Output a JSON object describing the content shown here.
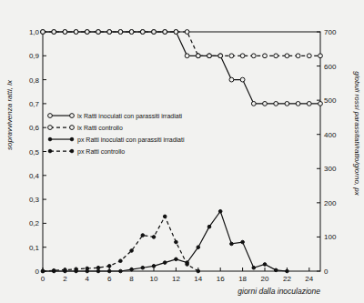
{
  "chart_data": {
    "type": "line",
    "x_label": "giorni dalla inoculazione",
    "y_label": "sopravvivenza ratti, lx",
    "y2_label": "globuli rossi parassitati/ratto/giorno, px",
    "x": [
      0,
      1,
      2,
      3,
      4,
      5,
      6,
      7,
      8,
      9,
      10,
      11,
      12,
      13,
      14,
      15,
      16,
      17,
      18,
      19,
      20,
      21,
      22,
      23,
      24,
      25
    ],
    "xlim": [
      0,
      25
    ],
    "xticks": [
      0,
      2,
      4,
      6,
      8,
      10,
      12,
      14,
      16,
      18,
      20,
      22,
      24
    ],
    "ylim": [
      0,
      1.0
    ],
    "yticks": [
      0,
      {
        "value": 0.1,
        "label": "0,1"
      },
      {
        "value": 0.2,
        "label": "0,2"
      },
      {
        "value": 0.3,
        "label": "0,3"
      },
      {
        "value": 0.4,
        "label": "0,4"
      },
      {
        "value": 0.5,
        "label": "0,5"
      },
      {
        "value": 0.6,
        "label": "0,6"
      },
      {
        "value": 0.7,
        "label": "0,7"
      },
      {
        "value": 0.8,
        "label": "0,8"
      },
      {
        "value": 0.9,
        "label": "0,9"
      },
      {
        "value": 1.0,
        "label": "1,0"
      }
    ],
    "y2lim": [
      0,
      700
    ],
    "y2ticks": [
      0,
      100,
      200,
      300,
      400,
      500,
      600,
      700
    ],
    "legend": "center-left",
    "grid": false,
    "series": [
      {
        "name": "lx Ratti inoculati con parassiti irradiati",
        "color": "#111111",
        "marker": "open-circle",
        "line_style": "solid",
        "values": [
          1.0,
          1.0,
          1.0,
          1.0,
          1.0,
          1.0,
          1.0,
          1.0,
          1.0,
          1.0,
          1.0,
          1.0,
          1.0,
          0.9,
          0.9,
          0.9,
          0.9,
          0.8,
          0.8,
          0.7,
          0.7,
          0.7,
          0.7,
          0.7,
          0.7,
          0.7
        ]
      },
      {
        "name": "lx Ratti controllo",
        "color": "#111111",
        "marker": "open-circle",
        "line_style": "dashed",
        "values": [
          1.0,
          1.0,
          1.0,
          1.0,
          1.0,
          1.0,
          1.0,
          1.0,
          1.0,
          1.0,
          1.0,
          1.0,
          1.0,
          1.0,
          0.9,
          0.9,
          0.9,
          0.9,
          0.9,
          0.9,
          0.9,
          0.9,
          0.9,
          0.9,
          0.9,
          0.9
        ]
      },
      {
        "name": "px Ratti inoculati con parassiti irradiati",
        "color": "#111111",
        "marker": "filled-circle",
        "line_style": "solid",
        "axis": "y2",
        "values": [
          0,
          0,
          0,
          0,
          0,
          0,
          0,
          0,
          5,
          10,
          15,
          25,
          35,
          25,
          70,
          130,
          175,
          80,
          85,
          10,
          20,
          3,
          0,
          null,
          null,
          null
        ]
      },
      {
        "name": "px Ratti controllo",
        "color": "#111111",
        "marker": "filled-circle",
        "line_style": "dashed",
        "axis": "y2",
        "values": [
          0,
          2,
          4,
          6,
          8,
          10,
          15,
          30,
          60,
          105,
          100,
          160,
          85,
          20,
          0,
          null,
          null,
          null,
          null,
          null,
          null,
          null,
          null,
          null,
          null,
          null
        ]
      }
    ]
  }
}
